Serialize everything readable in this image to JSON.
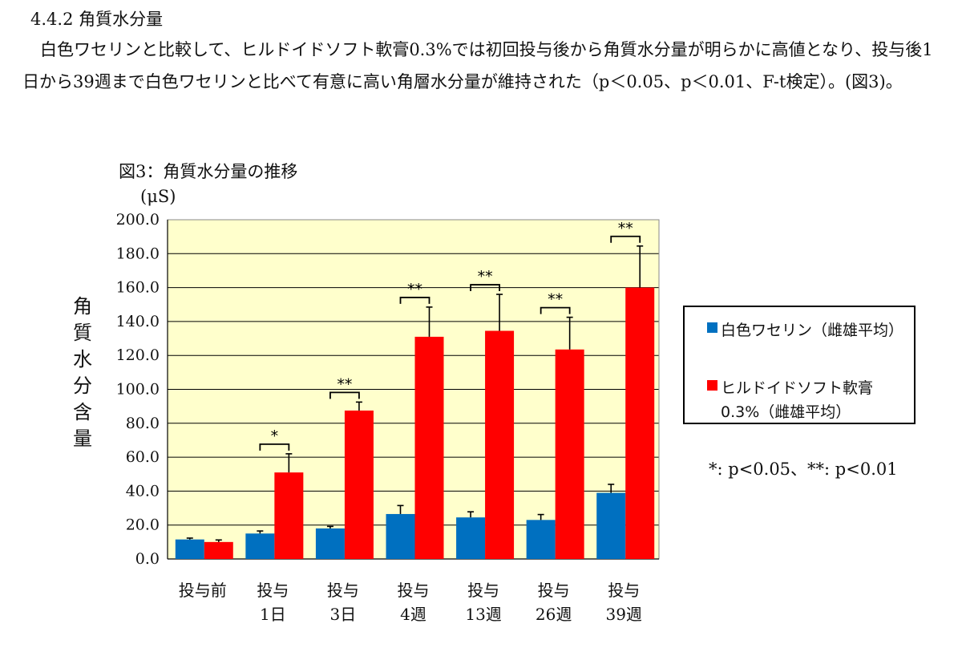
{
  "heading": "4.4.2 角質水分量",
  "paragraph": "白色ワセリンと比較して、ヒルドイドソフト軟膏0.3%では初回投与後から角質水分量が明らかに高値となり、投与後1日から39週まで白色ワセリンと比べて有意に高い角層水分量が維持された（p＜0.05、p＜0.01、F-t検定）。(図3)。",
  "figure": {
    "title": "図3：角質水分量の推移",
    "unit": "(μS)",
    "ylabel": "角質水分含量",
    "significance_note": "*: p<0.05、**: p<0.01",
    "legend": [
      {
        "name": "白色ワセリン（雌雄平均）",
        "color": "#0070C0"
      },
      {
        "name": "ヒルドイドソフト軟膏0.3%（雌雄平均）",
        "color": "#FF0000"
      }
    ]
  },
  "chart_data": {
    "type": "bar",
    "title": "図3：角質水分量の推移",
    "ylabel": "角質水分含量 (μS)",
    "xlabel": "",
    "ylim": [
      0,
      200
    ],
    "ytick_step": 20,
    "categories": [
      [
        "投与前"
      ],
      [
        "投与",
        "1日"
      ],
      [
        "投与",
        "3日"
      ],
      [
        "投与",
        "4週"
      ],
      [
        "投与",
        "13週"
      ],
      [
        "投与",
        "26週"
      ],
      [
        "投与",
        "39週"
      ]
    ],
    "series": [
      {
        "name": "白色ワセリン（雌雄平均）",
        "color": "#0070C0",
        "values": [
          11.5,
          15,
          18,
          26.5,
          24.5,
          23,
          39
        ],
        "errors": [
          0.8,
          1.5,
          1.2,
          5,
          3.3,
          3.2,
          5
        ]
      },
      {
        "name": "ヒルドイドソフト軟膏0.3%（雌雄平均）",
        "color": "#FF0000",
        "values": [
          10,
          51,
          87.5,
          131,
          134.5,
          123.5,
          160
        ],
        "errors": [
          1.2,
          11,
          5,
          17.5,
          21.5,
          19,
          24.5
        ]
      }
    ],
    "significance": [
      "",
      "*",
      "**",
      "**",
      "**",
      "**",
      "**"
    ],
    "plot_background": "#FFFFCC",
    "grid": true
  }
}
